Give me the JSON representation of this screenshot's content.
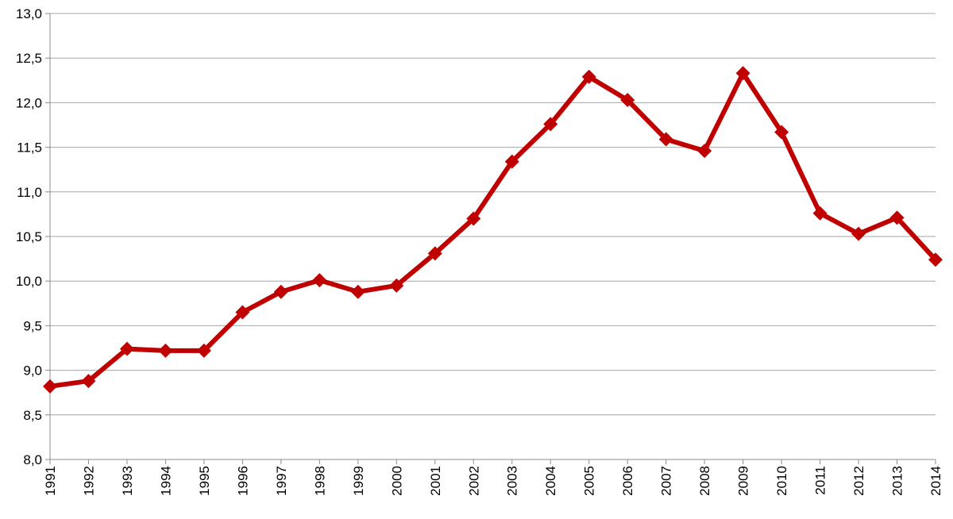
{
  "chart_data": {
    "type": "line",
    "title": "",
    "xlabel": "",
    "ylabel": "",
    "categories": [
      "1991",
      "1992",
      "1993",
      "1994",
      "1995",
      "1996",
      "1997",
      "1998",
      "1999",
      "2000",
      "2001",
      "2002",
      "2003",
      "2004",
      "2005",
      "2006",
      "2007",
      "2008",
      "2009",
      "2010",
      "2011",
      "2012",
      "2013",
      "2014"
    ],
    "series": [
      {
        "values": [
          8.82,
          8.88,
          9.24,
          9.22,
          9.22,
          9.65,
          9.88,
          10.01,
          9.88,
          9.95,
          10.31,
          10.7,
          11.34,
          11.76,
          12.29,
          12.03,
          11.59,
          11.46,
          12.33,
          11.67,
          10.76,
          10.53,
          10.71,
          10.24
        ],
        "color": "#c00000",
        "marker": "diamond"
      }
    ],
    "ylim": [
      8.0,
      13.0
    ],
    "yticks": [
      "8,0",
      "8,5",
      "9,0",
      "9,5",
      "10,0",
      "10,5",
      "11,0",
      "11,5",
      "12,0",
      "12,5",
      "13,0"
    ],
    "grid": true,
    "legend": "none"
  }
}
